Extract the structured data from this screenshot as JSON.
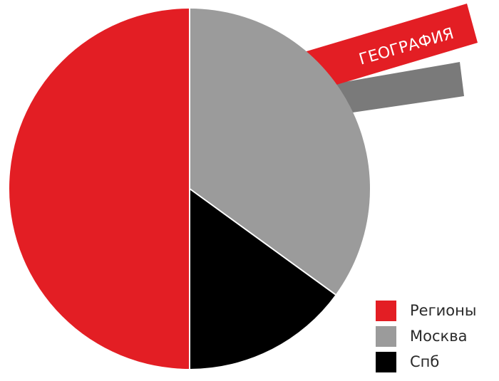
{
  "chart_data": {
    "type": "pie",
    "title": "ГЕОГРАФИЯ",
    "legend_position": "bottom-right",
    "slices": [
      {
        "name": "Регионы",
        "value": 50,
        "color": "#e31e24"
      },
      {
        "name": "Москва",
        "value": 35,
        "color": "#9b9b9b"
      },
      {
        "name": "Спб",
        "value": 15,
        "color": "#000000"
      }
    ]
  },
  "colors": {
    "banner_red": "#e31e24",
    "banner_gray": "#7a7a7a",
    "banner_text": "#ffffff"
  }
}
